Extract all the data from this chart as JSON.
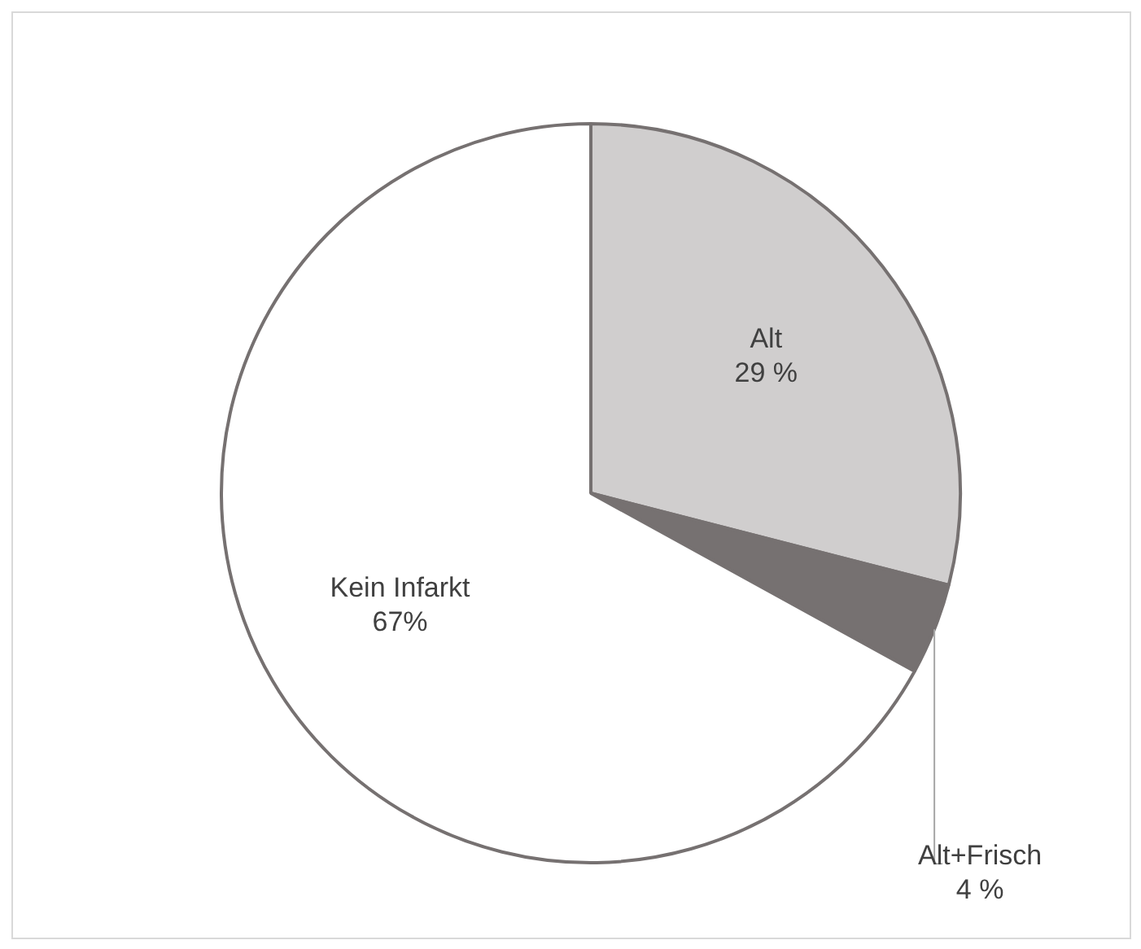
{
  "chart_data": {
    "type": "pie",
    "categories": [
      "Alt",
      "Alt+Frisch",
      "Kein Infarkt"
    ],
    "values": [
      29,
      4,
      67
    ],
    "colors": [
      "#d0cece",
      "#767171",
      "#ffffff"
    ],
    "value_labels": [
      "29 %",
      "4 %",
      "67%"
    ],
    "data_labels": true,
    "legend": false
  }
}
